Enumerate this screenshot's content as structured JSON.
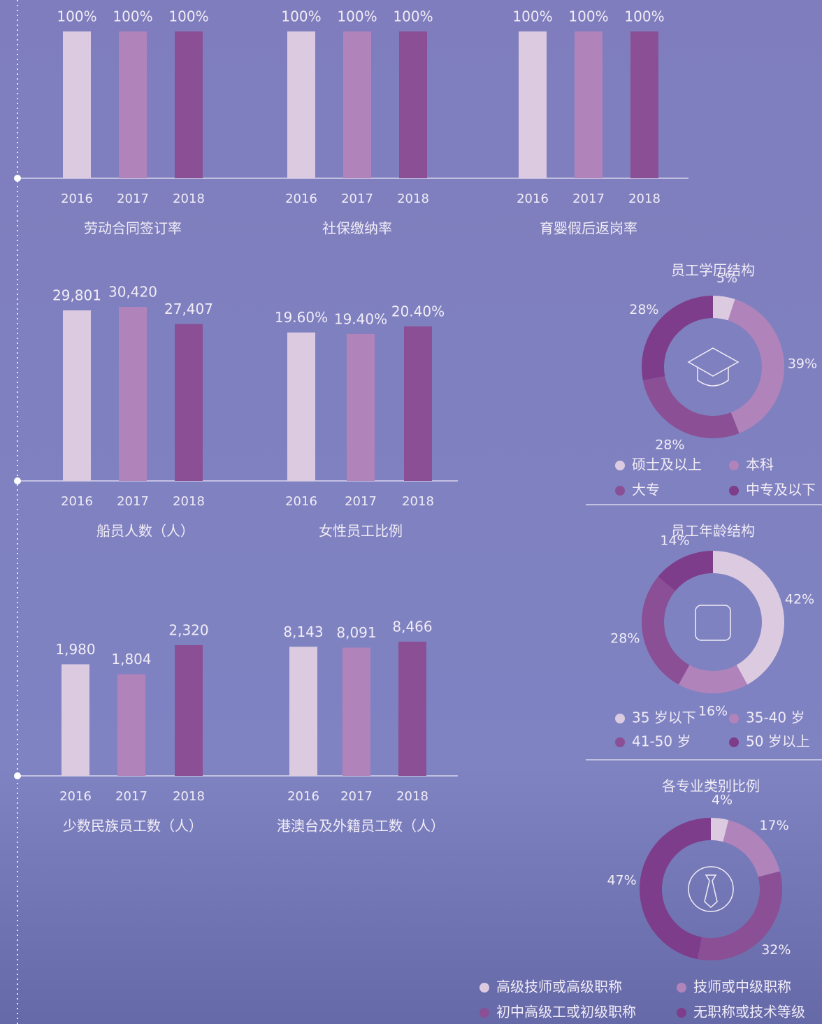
{
  "chart_data": [
    {
      "type": "bar",
      "title": "劳动合同签订率",
      "categories": [
        "2016",
        "2017",
        "2018"
      ],
      "values": [
        100,
        100,
        100
      ],
      "value_labels": [
        "100%",
        "100%",
        "100%"
      ],
      "colors": [
        "#dccbe0",
        "#b083bb",
        "#8a4f94"
      ]
    },
    {
      "type": "bar",
      "title": "社保缴纳率",
      "categories": [
        "2016",
        "2017",
        "2018"
      ],
      "values": [
        100,
        100,
        100
      ],
      "value_labels": [
        "100%",
        "100%",
        "100%"
      ],
      "colors": [
        "#dccbe0",
        "#b083bb",
        "#8a4f94"
      ]
    },
    {
      "type": "bar",
      "title": "育婴假后返岗率",
      "categories": [
        "2016",
        "2017",
        "2018"
      ],
      "values": [
        100,
        100,
        100
      ],
      "value_labels": [
        "100%",
        "100%",
        "100%"
      ],
      "colors": [
        "#dccbe0",
        "#b083bb",
        "#8a4f94"
      ]
    },
    {
      "type": "bar",
      "title": "船员人数（人）",
      "categories": [
        "2016",
        "2017",
        "2018"
      ],
      "values": [
        29801,
        30420,
        27407
      ],
      "value_labels": [
        "29,801",
        "30,420",
        "27,407"
      ],
      "colors": [
        "#dccbe0",
        "#b083bb",
        "#8a4f94"
      ]
    },
    {
      "type": "bar",
      "title": "女性员工比例",
      "categories": [
        "2016",
        "2017",
        "2018"
      ],
      "values": [
        19.6,
        19.4,
        20.4
      ],
      "value_labels": [
        "19.60%",
        "19.40%",
        "20.40%"
      ],
      "colors": [
        "#dccbe0",
        "#b083bb",
        "#8a4f94"
      ]
    },
    {
      "type": "bar",
      "title": "少数民族员工数（人）",
      "categories": [
        "2016",
        "2017",
        "2018"
      ],
      "values": [
        1980,
        1804,
        2320
      ],
      "value_labels": [
        "1,980",
        "1,804",
        "2,320"
      ],
      "colors": [
        "#dccbe0",
        "#b083bb",
        "#8a4f94"
      ]
    },
    {
      "type": "bar",
      "title": "港澳台及外籍员工数（人）",
      "categories": [
        "2016",
        "2017",
        "2018"
      ],
      "values": [
        8143,
        8091,
        8466
      ],
      "value_labels": [
        "8,143",
        "8,091",
        "8,466"
      ],
      "colors": [
        "#dccbe0",
        "#b083bb",
        "#8a4f94"
      ]
    },
    {
      "type": "pie",
      "title": "员工学历结构",
      "categories": [
        "硕士及以上",
        "本科",
        "大专",
        "中专及以下"
      ],
      "values": [
        5,
        39,
        28,
        28
      ],
      "value_labels": [
        "5%",
        "39%",
        "28%",
        "28%"
      ],
      "colors": [
        "#dccbe0",
        "#b083bb",
        "#8a4f94",
        "#7e3d8a"
      ]
    },
    {
      "type": "pie",
      "title": "员工年龄结构",
      "categories": [
        "35 岁以下",
        "35-40 岁",
        "41-50 岁",
        "50 岁以上"
      ],
      "values": [
        42,
        16,
        28,
        14
      ],
      "value_labels": [
        "42%",
        "16%",
        "28%",
        "14%"
      ],
      "colors": [
        "#dccbe0",
        "#b083bb",
        "#8a4f94",
        "#7e3d8a"
      ]
    },
    {
      "type": "pie",
      "title": "各专业类别比例",
      "categories": [
        "高级技师或高级职称",
        "技师或中级职称",
        "初中高级工或初级职称",
        "无职称或技术等级"
      ],
      "values": [
        4,
        17,
        32,
        47
      ],
      "value_labels": [
        "4%",
        "17%",
        "32%",
        "47%"
      ],
      "colors": [
        "#dccbe0",
        "#b083bb",
        "#8a4f94",
        "#7e3d8a"
      ]
    }
  ]
}
